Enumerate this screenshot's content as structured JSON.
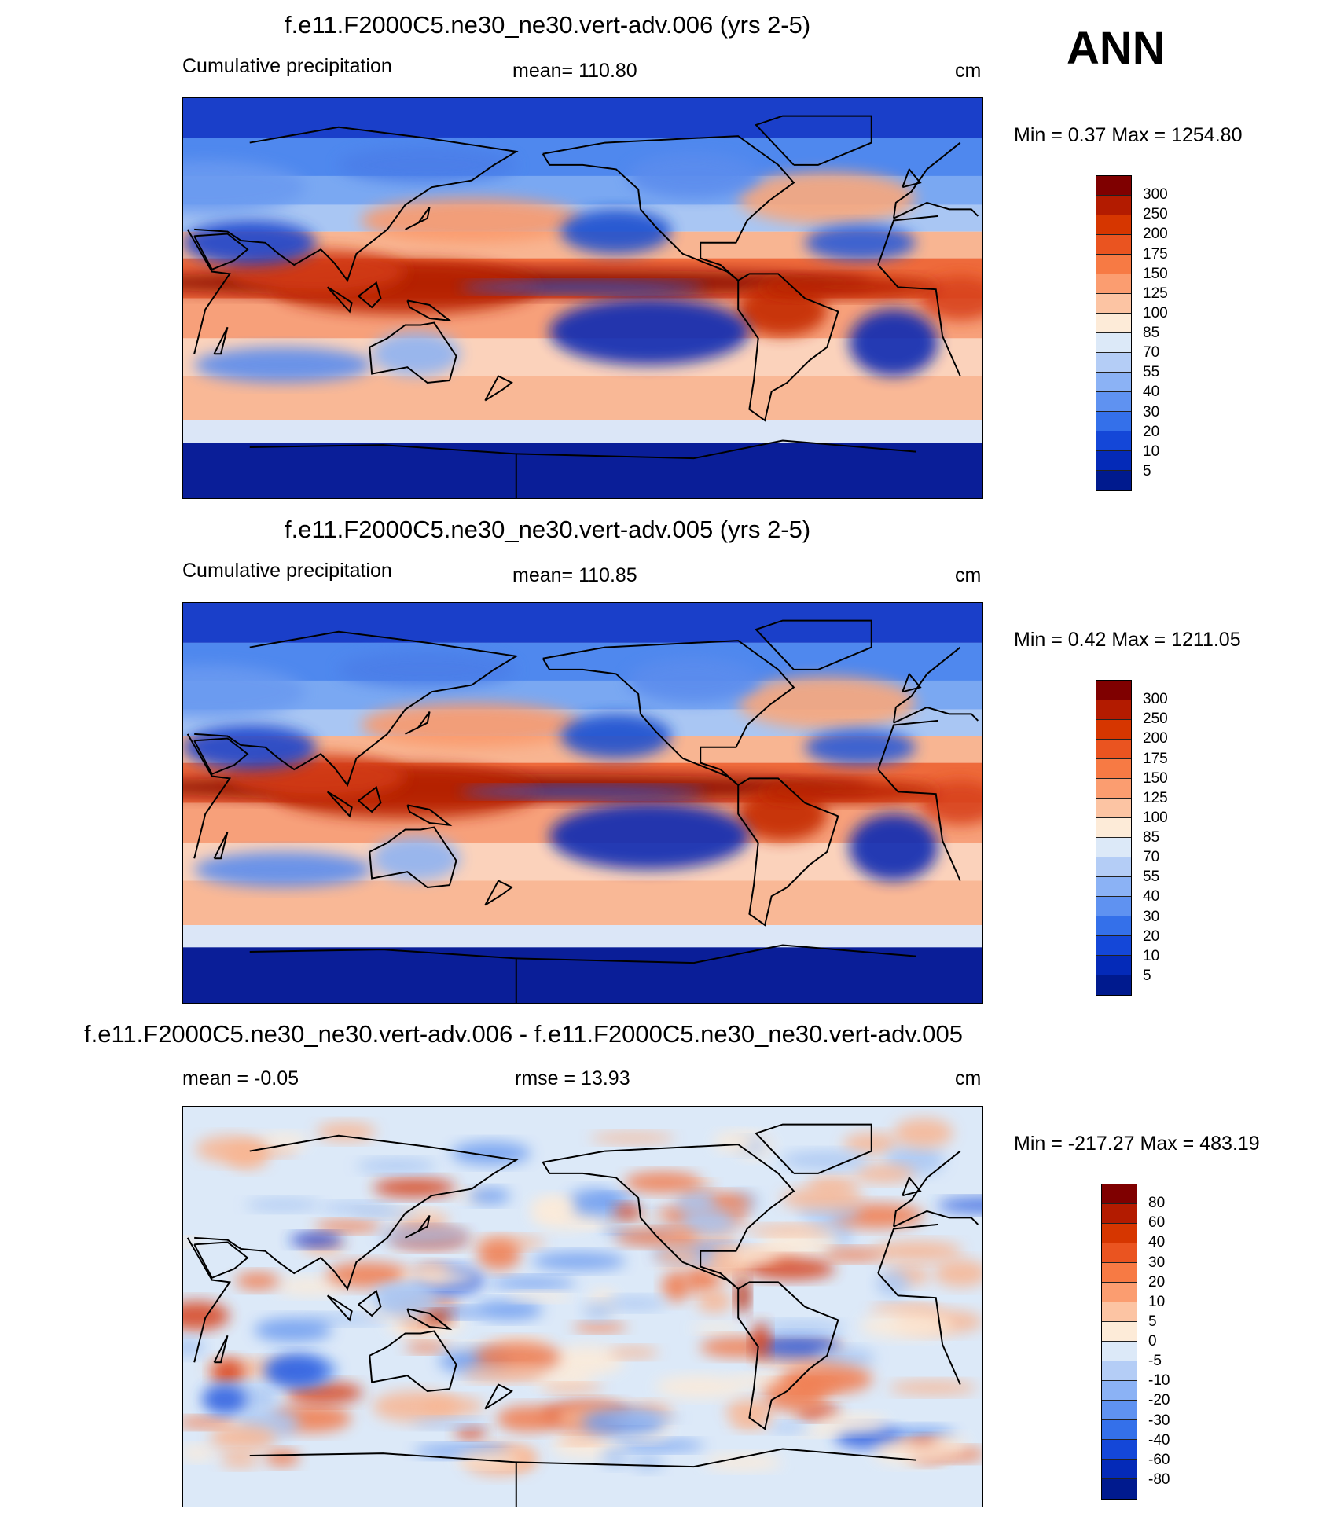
{
  "season": "ANN",
  "units_label": "cm",
  "panels": [
    {
      "title": "f.e11.F2000C5.ne30_ne30.vert-adv.006 (yrs 2-5)",
      "left_label": "Cumulative precipitation",
      "center_label": "mean= 110.80",
      "right_label": "cm",
      "minmax": "Min =   0.37 Max = 1254.80",
      "colorbar_labels": [
        "300",
        "250",
        "200",
        "175",
        "150",
        "125",
        "100",
        "85",
        "70",
        "55",
        "40",
        "30",
        "20",
        "10",
        "5"
      ],
      "colorbar_colors": [
        "#7f0000",
        "#b31b00",
        "#d63600",
        "#ea5420",
        "#f77a44",
        "#fb9d70",
        "#fcc4a3",
        "#fdebd8",
        "#dce9f8",
        "#b4cdf6",
        "#8bb2f5",
        "#5f92f1",
        "#3470ea",
        "#1447d8",
        "#042ab8",
        "#001a8e"
      ]
    },
    {
      "title": "f.e11.F2000C5.ne30_ne30.vert-adv.005 (yrs 2-5)",
      "left_label": "Cumulative precipitation",
      "center_label": "mean= 110.85",
      "right_label": "cm",
      "minmax": "Min =   0.42 Max = 1211.05",
      "colorbar_labels": [
        "300",
        "250",
        "200",
        "175",
        "150",
        "125",
        "100",
        "85",
        "70",
        "55",
        "40",
        "30",
        "20",
        "10",
        "5"
      ],
      "colorbar_colors": [
        "#7f0000",
        "#b31b00",
        "#d63600",
        "#ea5420",
        "#f77a44",
        "#fb9d70",
        "#fcc4a3",
        "#fdebd8",
        "#dce9f8",
        "#b4cdf6",
        "#8bb2f5",
        "#5f92f1",
        "#3470ea",
        "#1447d8",
        "#042ab8",
        "#001a8e"
      ]
    },
    {
      "title": "f.e11.F2000C5.ne30_ne30.vert-adv.006 - f.e11.F2000C5.ne30_ne30.vert-adv.005",
      "left_label": "mean =  -0.05",
      "center_label": "rmse =  13.93",
      "right_label": "cm",
      "minmax": "Min = -217.27 Max = 483.19",
      "colorbar_labels": [
        "80",
        "60",
        "40",
        "30",
        "20",
        "10",
        "5",
        "0",
        "-5",
        "-10",
        "-20",
        "-30",
        "-40",
        "-60",
        "-80"
      ],
      "colorbar_colors": [
        "#7f0000",
        "#b31b00",
        "#d63600",
        "#ea5420",
        "#f77a44",
        "#fb9d70",
        "#fcc4a3",
        "#fdebd8",
        "#dce9f8",
        "#b4cdf6",
        "#8bb2f5",
        "#5f92f1",
        "#3470ea",
        "#1447d8",
        "#042ab8",
        "#001a8e"
      ]
    }
  ]
}
